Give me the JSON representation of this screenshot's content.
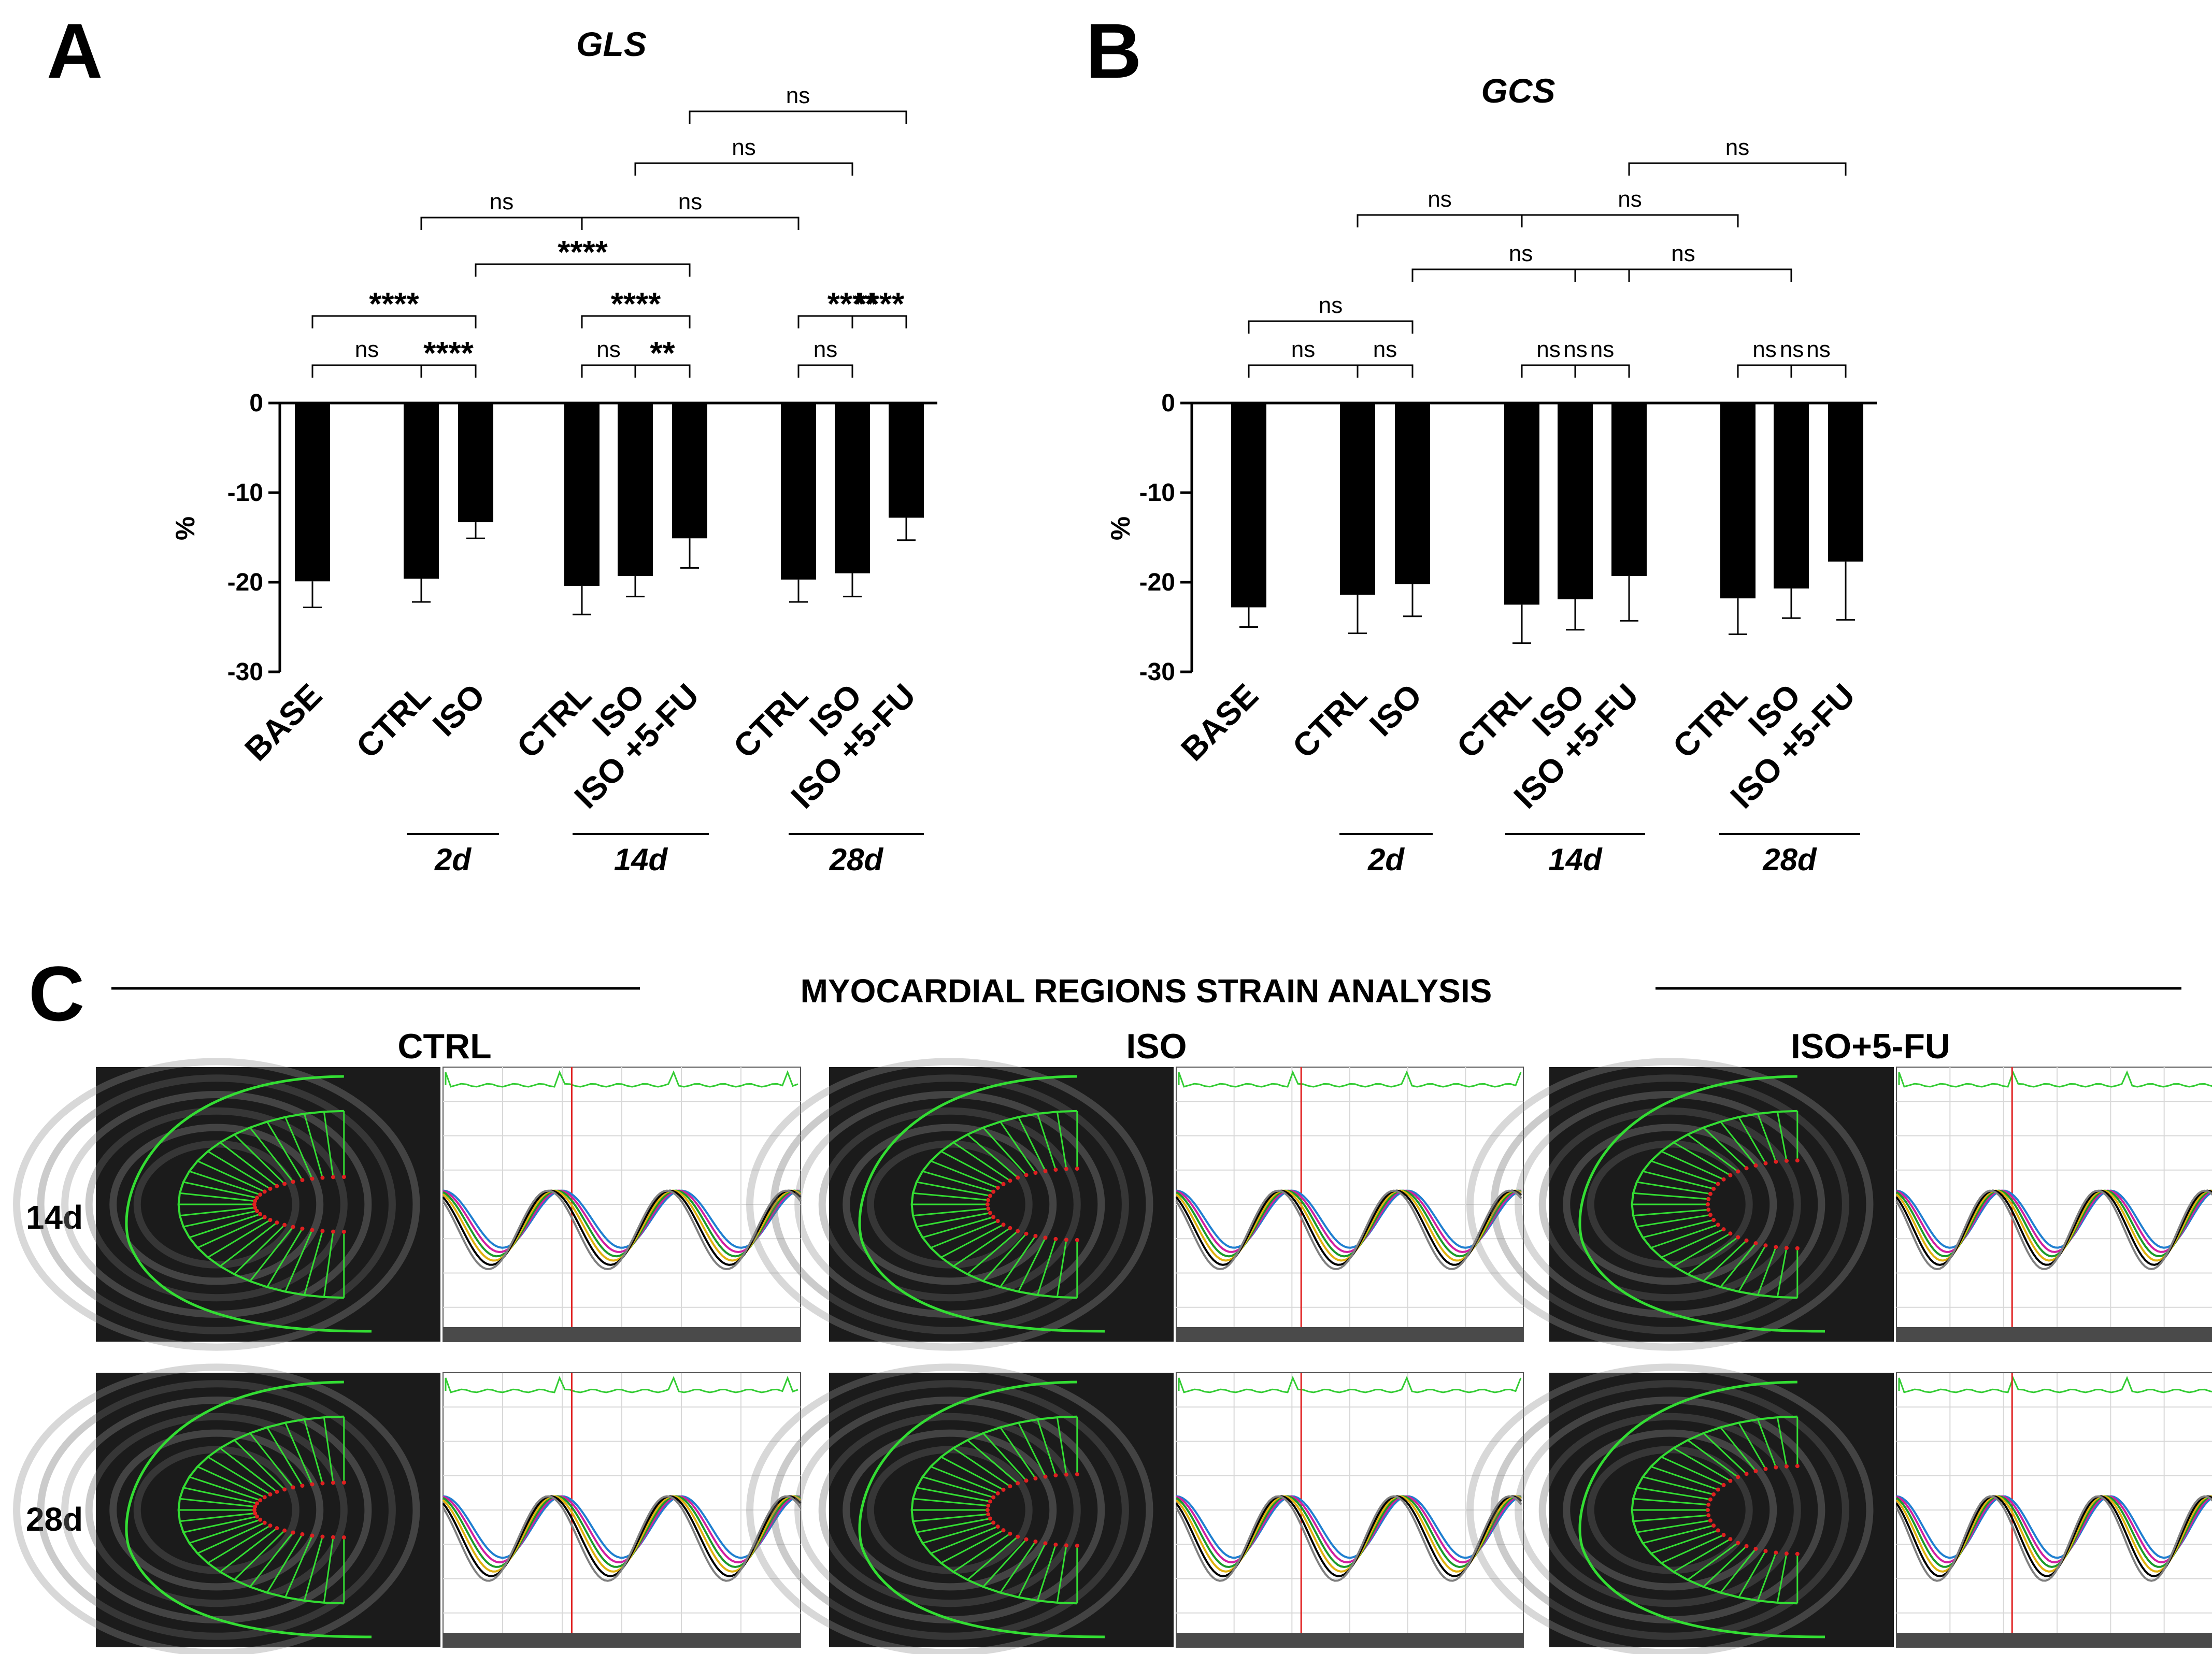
{
  "panels": {
    "a_letter": "A",
    "b_letter": "B",
    "c_letter": "C"
  },
  "chart_data": [
    {
      "type": "bar",
      "title": "GLS",
      "ylabel": "%",
      "ylim": [
        -30,
        0
      ],
      "yticks": [
        0,
        -10,
        -20,
        -30
      ],
      "categories": [
        "BASE",
        "CTRL",
        "ISO",
        "CTRL",
        "ISO",
        "ISO +5-FU",
        "CTRL",
        "ISO",
        "ISO +5-FU"
      ],
      "groups": [
        "",
        "2d",
        "2d",
        "14d",
        "14d",
        "14d",
        "28d",
        "28d",
        "28d"
      ],
      "group_labels": [
        "2d",
        "14d",
        "28d"
      ],
      "values": [
        -19.9,
        -19.6,
        -13.3,
        -20.4,
        -19.3,
        -15.1,
        -19.7,
        -19.0,
        -12.8
      ],
      "errors": [
        2.9,
        2.6,
        1.8,
        3.2,
        2.3,
        3.3,
        2.5,
        2.6,
        2.5
      ],
      "bar_color": "#000000",
      "comparisons": [
        {
          "from": 0,
          "to": 1,
          "label": "ns"
        },
        {
          "from": 1,
          "to": 2,
          "label": "****"
        },
        {
          "from": 0,
          "to": 2,
          "label": "****"
        },
        {
          "from": 3,
          "to": 4,
          "label": "ns"
        },
        {
          "from": 4,
          "to": 5,
          "label": "**"
        },
        {
          "from": 3,
          "to": 5,
          "label": "****"
        },
        {
          "from": 6,
          "to": 7,
          "label": "ns"
        },
        {
          "from": 7,
          "to": 8,
          "label": "****"
        },
        {
          "from": 6,
          "to": 8,
          "label": "****"
        },
        {
          "from": 2,
          "to": 5,
          "label": "****"
        },
        {
          "from": 1,
          "to": 3,
          "label": "ns"
        },
        {
          "from": 3,
          "to": 6,
          "label": "ns"
        },
        {
          "from": 4,
          "to": 7,
          "label": "ns"
        },
        {
          "from": 5,
          "to": 8,
          "label": "ns"
        }
      ]
    },
    {
      "type": "bar",
      "title": "GCS",
      "ylabel": "%",
      "ylim": [
        -30,
        0
      ],
      "yticks": [
        0,
        -10,
        -20,
        -30
      ],
      "categories": [
        "BASE",
        "CTRL",
        "ISO",
        "CTRL",
        "ISO",
        "ISO +5-FU",
        "CTRL",
        "ISO",
        "ISO +5-FU"
      ],
      "groups": [
        "",
        "2d",
        "2d",
        "14d",
        "14d",
        "14d",
        "28d",
        "28d",
        "28d"
      ],
      "group_labels": [
        "2d",
        "14d",
        "28d"
      ],
      "values": [
        -22.8,
        -21.4,
        -20.2,
        -22.5,
        -21.9,
        -19.3,
        -21.8,
        -20.7,
        -17.7
      ],
      "errors": [
        2.2,
        4.3,
        3.6,
        4.3,
        3.4,
        5.0,
        4.0,
        3.3,
        6.5
      ],
      "bar_color": "#000000",
      "comparisons": [
        {
          "from": 0,
          "to": 1,
          "label": "ns"
        },
        {
          "from": 1,
          "to": 2,
          "label": "ns"
        },
        {
          "from": 3,
          "to": 4,
          "label": "ns"
        },
        {
          "from": 4,
          "to": 5,
          "label": "ns"
        },
        {
          "from": 6,
          "to": 7,
          "label": "ns"
        },
        {
          "from": 7,
          "to": 8,
          "label": "ns"
        },
        {
          "from": 3,
          "to": 5,
          "label": "ns"
        },
        {
          "from": 6,
          "to": 8,
          "label": "ns"
        },
        {
          "from": 0,
          "to": 2,
          "label": "ns"
        },
        {
          "from": 2,
          "to": 5,
          "label": "ns"
        },
        {
          "from": 4,
          "to": 7,
          "label": "ns"
        },
        {
          "from": 1,
          "to": 3,
          "label": "ns"
        },
        {
          "from": 3,
          "to": 6,
          "label": "ns"
        },
        {
          "from": 5,
          "to": 8,
          "label": "ns"
        }
      ]
    }
  ],
  "strain_analysis": {
    "heading": "MYOCARDIAL REGIONS STRAIN ANALYSIS",
    "columns": [
      "CTRL",
      "ISO",
      "ISO+5-FU"
    ],
    "rows": [
      "14d",
      "28d"
    ],
    "trace_colors": [
      "#1f7fd0",
      "#d01fa0",
      "#1a9a2a",
      "#e0b010",
      "#000000",
      "#808080"
    ],
    "contour_color": "#33dd33",
    "ecg_color": "#33cc33",
    "marker_color": "#e02020"
  }
}
